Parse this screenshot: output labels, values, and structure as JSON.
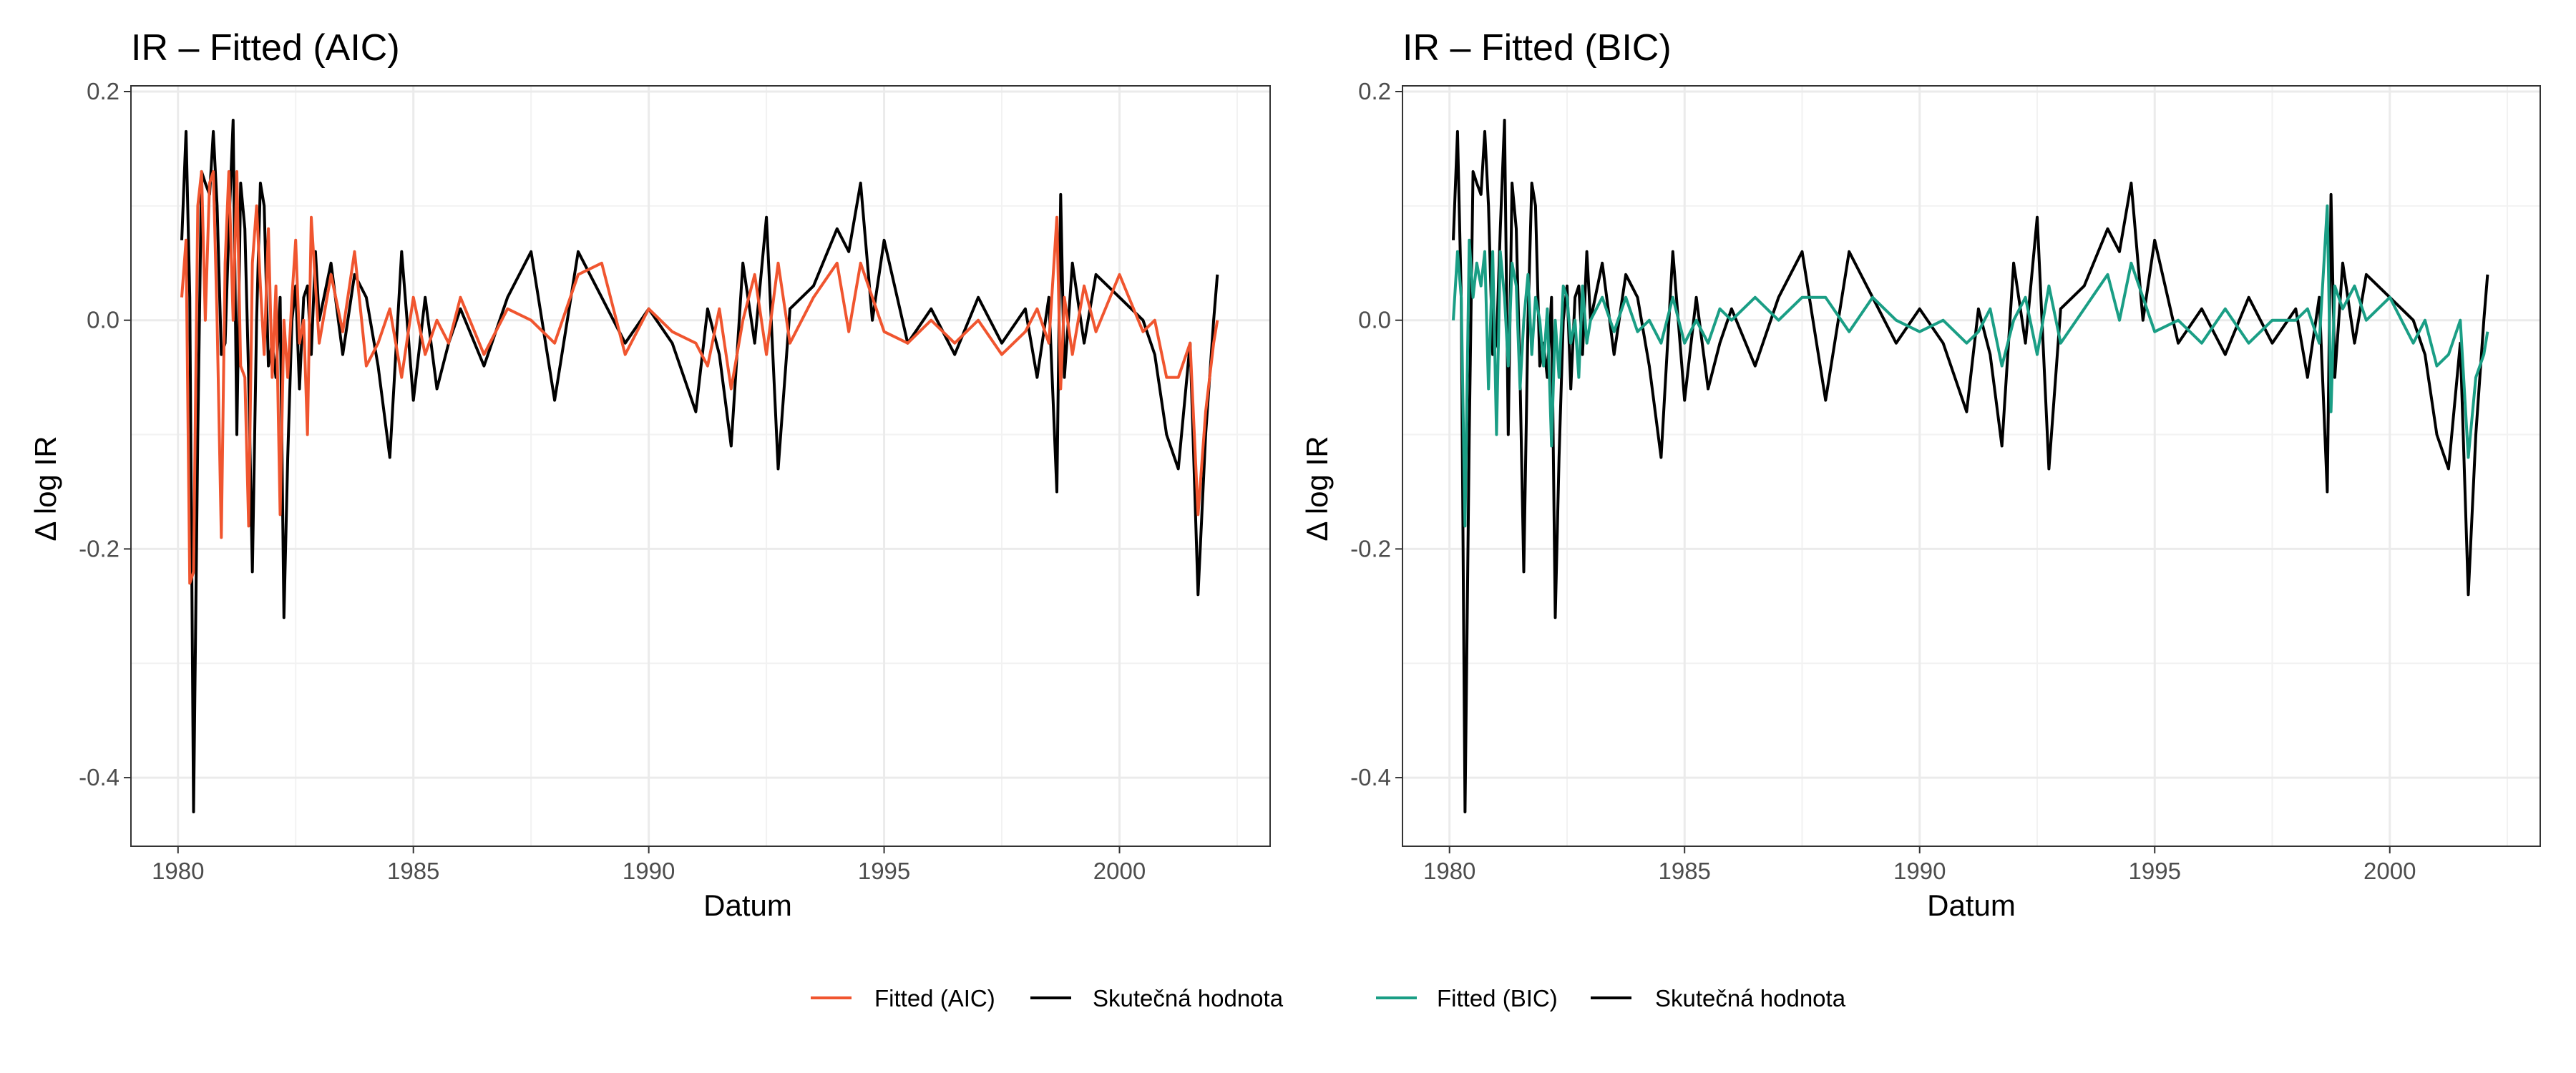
{
  "chart_data": [
    {
      "type": "line",
      "title": "IR – Fitted (AIC)",
      "xlabel": "Datum",
      "ylabel": "Δ log IR",
      "xlim": [
        1979.0,
        2003.2
      ],
      "ylim": [
        -0.46,
        0.205
      ],
      "x_ticks": [
        1980,
        1985,
        1990,
        1995,
        2000
      ],
      "x_tick_labels": [
        "1980",
        "1985",
        "1990",
        "1995",
        "2000"
      ],
      "y_ticks": [
        0.2,
        0.0,
        -0.2,
        -0.4
      ],
      "y_tick_labels": [
        "0.2",
        "0.0",
        "-0.2",
        "-0.4"
      ],
      "grid": true,
      "series": [
        {
          "name": "Skutečná hodnota",
          "color": "#000000",
          "x": [
            1980.08,
            1980.17,
            1980.25,
            1980.33,
            1980.42,
            1980.5,
            1980.58,
            1980.67,
            1980.75,
            1980.83,
            1980.92,
            1981.0,
            1981.08,
            1981.17,
            1981.25,
            1981.33,
            1981.42,
            1981.5,
            1981.58,
            1981.67,
            1981.75,
            1981.83,
            1981.92,
            1982.0,
            1982.08,
            1982.17,
            1982.25,
            1982.33,
            1982.42,
            1982.5,
            1982.58,
            1982.67,
            1982.75,
            1982.83,
            1982.92,
            1983.0,
            1983.25,
            1983.5,
            1983.75,
            1984.0,
            1984.25,
            1984.5,
            1984.75,
            1985.0,
            1985.25,
            1985.5,
            1985.75,
            1986.0,
            1986.5,
            1987.0,
            1987.5,
            1988.0,
            1988.5,
            1989.0,
            1989.5,
            1990.0,
            1990.5,
            1991.0,
            1991.25,
            1991.5,
            1991.75,
            1992.0,
            1992.25,
            1992.5,
            1992.75,
            1993.0,
            1993.5,
            1994.0,
            1994.25,
            1994.5,
            1994.75,
            1995.0,
            1995.5,
            1996.0,
            1996.5,
            1997.0,
            1997.5,
            1998.0,
            1998.25,
            1998.5,
            1998.67,
            1998.75,
            1998.83,
            1999.0,
            1999.25,
            1999.5,
            2000.0,
            2000.5,
            2000.75,
            2001.0,
            2001.25,
            2001.5,
            2001.67,
            2001.83,
            2002.0,
            2002.08
          ],
          "y": [
            0.07,
            0.165,
            0.02,
            -0.43,
            -0.1,
            0.13,
            0.12,
            0.11,
            0.165,
            0.1,
            -0.03,
            -0.02,
            0.08,
            0.175,
            -0.1,
            0.12,
            0.08,
            -0.05,
            -0.22,
            0.0,
            0.12,
            0.1,
            -0.04,
            -0.02,
            -0.05,
            0.02,
            -0.26,
            -0.12,
            0.0,
            0.03,
            -0.06,
            0.02,
            0.03,
            -0.03,
            0.06,
            0.0,
            0.05,
            -0.03,
            0.04,
            0.02,
            -0.04,
            -0.12,
            0.06,
            -0.07,
            0.02,
            -0.06,
            -0.02,
            0.01,
            -0.04,
            0.02,
            0.06,
            -0.07,
            0.06,
            0.02,
            -0.02,
            0.01,
            -0.02,
            -0.08,
            0.01,
            -0.03,
            -0.11,
            0.05,
            -0.02,
            0.09,
            -0.13,
            0.01,
            0.03,
            0.08,
            0.06,
            0.12,
            0.0,
            0.07,
            -0.02,
            0.01,
            -0.03,
            0.02,
            -0.02,
            0.01,
            -0.05,
            0.02,
            -0.15,
            0.11,
            -0.05,
            0.05,
            -0.02,
            0.04,
            0.02,
            0.0,
            -0.03,
            -0.1,
            -0.13,
            -0.02,
            -0.24,
            -0.1,
            0.0,
            0.04
          ]
        },
        {
          "name": "Fitted (AIC)",
          "color": "#f0552f",
          "x": [
            1980.08,
            1980.17,
            1980.25,
            1980.33,
            1980.42,
            1980.5,
            1980.58,
            1980.67,
            1980.75,
            1980.83,
            1980.92,
            1981.0,
            1981.08,
            1981.17,
            1981.25,
            1981.33,
            1981.42,
            1981.5,
            1981.58,
            1981.67,
            1981.75,
            1981.83,
            1981.92,
            1982.0,
            1982.08,
            1982.17,
            1982.25,
            1982.33,
            1982.42,
            1982.5,
            1982.58,
            1982.67,
            1982.75,
            1982.83,
            1982.92,
            1983.0,
            1983.25,
            1983.5,
            1983.75,
            1984.0,
            1984.25,
            1984.5,
            1984.75,
            1985.0,
            1985.25,
            1985.5,
            1985.75,
            1986.0,
            1986.5,
            1987.0,
            1987.5,
            1988.0,
            1988.5,
            1989.0,
            1989.5,
            1990.0,
            1990.5,
            1991.0,
            1991.25,
            1991.5,
            1991.75,
            1992.0,
            1992.25,
            1992.5,
            1992.75,
            1993.0,
            1993.5,
            1994.0,
            1994.25,
            1994.5,
            1994.75,
            1995.0,
            1995.5,
            1996.0,
            1996.5,
            1997.0,
            1997.5,
            1998.0,
            1998.25,
            1998.5,
            1998.67,
            1998.75,
            1998.83,
            1999.0,
            1999.25,
            1999.5,
            2000.0,
            2000.5,
            2000.75,
            2001.0,
            2001.25,
            2001.5,
            2001.67,
            2001.83,
            2002.0,
            2002.08
          ],
          "y": [
            0.02,
            0.07,
            -0.23,
            -0.22,
            0.1,
            0.13,
            0.0,
            0.12,
            0.13,
            0.0,
            -0.19,
            0.05,
            0.13,
            0.0,
            0.13,
            -0.04,
            -0.05,
            -0.18,
            0.05,
            0.1,
            0.03,
            -0.03,
            0.08,
            -0.05,
            0.03,
            -0.17,
            0.0,
            -0.05,
            0.02,
            0.07,
            -0.02,
            0.0,
            -0.1,
            0.09,
            0.03,
            -0.02,
            0.04,
            -0.01,
            0.06,
            -0.04,
            -0.02,
            0.01,
            -0.05,
            0.02,
            -0.03,
            0.0,
            -0.02,
            0.02,
            -0.03,
            0.01,
            0.0,
            -0.02,
            0.04,
            0.05,
            -0.03,
            0.01,
            -0.01,
            -0.02,
            -0.04,
            0.01,
            -0.06,
            0.0,
            0.04,
            -0.03,
            0.05,
            -0.02,
            0.02,
            0.05,
            -0.01,
            0.05,
            0.02,
            -0.01,
            -0.02,
            0.0,
            -0.02,
            0.0,
            -0.03,
            -0.01,
            0.01,
            -0.02,
            0.09,
            -0.06,
            0.02,
            -0.03,
            0.03,
            -0.01,
            0.04,
            -0.01,
            0.0,
            -0.05,
            -0.05,
            -0.02,
            -0.17,
            -0.08,
            -0.02,
            0.0
          ]
        }
      ],
      "legend": {
        "position": "bottom",
        "entries": [
          {
            "label": "Fitted (AIC)",
            "color": "#f0552f"
          },
          {
            "label": "Skutečná hodnota",
            "color": "#000000"
          }
        ]
      }
    },
    {
      "type": "line",
      "title": "IR – Fitted (BIC)",
      "xlabel": "Datum",
      "ylabel": "Δ log IR",
      "xlim": [
        1979.0,
        2003.2
      ],
      "ylim": [
        -0.46,
        0.205
      ],
      "x_ticks": [
        1980,
        1985,
        1990,
        1995,
        2000
      ],
      "x_tick_labels": [
        "1980",
        "1985",
        "1990",
        "1995",
        "2000"
      ],
      "y_ticks": [
        0.2,
        0.0,
        -0.2,
        -0.4
      ],
      "y_tick_labels": [
        "0.2",
        "0.0",
        "-0.2",
        "-0.4"
      ],
      "grid": true,
      "series": [
        {
          "name": "Skutečná hodnota",
          "color": "#000000",
          "x": [
            1980.08,
            1980.17,
            1980.25,
            1980.33,
            1980.42,
            1980.5,
            1980.58,
            1980.67,
            1980.75,
            1980.83,
            1980.92,
            1981.0,
            1981.08,
            1981.17,
            1981.25,
            1981.33,
            1981.42,
            1981.5,
            1981.58,
            1981.67,
            1981.75,
            1981.83,
            1981.92,
            1982.0,
            1982.08,
            1982.17,
            1982.25,
            1982.33,
            1982.42,
            1982.5,
            1982.58,
            1982.67,
            1982.75,
            1982.83,
            1982.92,
            1983.0,
            1983.25,
            1983.5,
            1983.75,
            1984.0,
            1984.25,
            1984.5,
            1984.75,
            1985.0,
            1985.25,
            1985.5,
            1985.75,
            1986.0,
            1986.5,
            1987.0,
            1987.5,
            1988.0,
            1988.5,
            1989.0,
            1989.5,
            1990.0,
            1990.5,
            1991.0,
            1991.25,
            1991.5,
            1991.75,
            1992.0,
            1992.25,
            1992.5,
            1992.75,
            1993.0,
            1993.5,
            1994.0,
            1994.25,
            1994.5,
            1994.75,
            1995.0,
            1995.5,
            1996.0,
            1996.5,
            1997.0,
            1997.5,
            1998.0,
            1998.25,
            1998.5,
            1998.67,
            1998.75,
            1998.83,
            1999.0,
            1999.25,
            1999.5,
            2000.0,
            2000.5,
            2000.75,
            2001.0,
            2001.25,
            2001.5,
            2001.67,
            2001.83,
            2002.0,
            2002.08
          ],
          "y": [
            0.07,
            0.165,
            0.02,
            -0.43,
            -0.1,
            0.13,
            0.12,
            0.11,
            0.165,
            0.1,
            -0.03,
            -0.02,
            0.08,
            0.175,
            -0.1,
            0.12,
            0.08,
            -0.05,
            -0.22,
            0.0,
            0.12,
            0.1,
            -0.04,
            -0.02,
            -0.05,
            0.02,
            -0.26,
            -0.12,
            0.0,
            0.03,
            -0.06,
            0.02,
            0.03,
            -0.03,
            0.06,
            0.0,
            0.05,
            -0.03,
            0.04,
            0.02,
            -0.04,
            -0.12,
            0.06,
            -0.07,
            0.02,
            -0.06,
            -0.02,
            0.01,
            -0.04,
            0.02,
            0.06,
            -0.07,
            0.06,
            0.02,
            -0.02,
            0.01,
            -0.02,
            -0.08,
            0.01,
            -0.03,
            -0.11,
            0.05,
            -0.02,
            0.09,
            -0.13,
            0.01,
            0.03,
            0.08,
            0.06,
            0.12,
            0.0,
            0.07,
            -0.02,
            0.01,
            -0.03,
            0.02,
            -0.02,
            0.01,
            -0.05,
            0.02,
            -0.15,
            0.11,
            -0.05,
            0.05,
            -0.02,
            0.04,
            0.02,
            0.0,
            -0.03,
            -0.1,
            -0.13,
            -0.02,
            -0.24,
            -0.1,
            0.0,
            0.04
          ]
        },
        {
          "name": "Fitted (BIC)",
          "color": "#1a9e85",
          "x": [
            1980.08,
            1980.17,
            1980.25,
            1980.33,
            1980.42,
            1980.5,
            1980.58,
            1980.67,
            1980.75,
            1980.83,
            1980.92,
            1981.0,
            1981.08,
            1981.17,
            1981.25,
            1981.33,
            1981.42,
            1981.5,
            1981.58,
            1981.67,
            1981.75,
            1981.83,
            1981.92,
            1982.0,
            1982.08,
            1982.17,
            1982.25,
            1982.33,
            1982.42,
            1982.5,
            1982.58,
            1982.67,
            1982.75,
            1982.83,
            1982.92,
            1983.0,
            1983.25,
            1983.5,
            1983.75,
            1984.0,
            1984.25,
            1984.5,
            1984.75,
            1985.0,
            1985.25,
            1985.5,
            1985.75,
            1986.0,
            1986.5,
            1987.0,
            1987.5,
            1988.0,
            1988.5,
            1989.0,
            1989.5,
            1990.0,
            1990.5,
            1991.0,
            1991.25,
            1991.5,
            1991.75,
            1992.0,
            1992.25,
            1992.5,
            1992.75,
            1993.0,
            1993.5,
            1994.0,
            1994.25,
            1994.5,
            1994.75,
            1995.0,
            1995.5,
            1996.0,
            1996.5,
            1997.0,
            1997.5,
            1998.0,
            1998.25,
            1998.5,
            1998.67,
            1998.75,
            1998.83,
            1999.0,
            1999.25,
            1999.5,
            2000.0,
            2000.5,
            2000.75,
            2001.0,
            2001.25,
            2001.5,
            2001.67,
            2001.83,
            2002.0,
            2002.08
          ],
          "y": [
            0.0,
            0.06,
            0.02,
            -0.18,
            0.07,
            0.02,
            0.05,
            0.03,
            0.06,
            -0.06,
            0.06,
            -0.1,
            0.06,
            0.02,
            -0.04,
            0.05,
            0.03,
            -0.06,
            0.0,
            0.04,
            -0.03,
            0.02,
            0.0,
            -0.04,
            0.01,
            -0.11,
            0.0,
            -0.05,
            0.03,
            0.02,
            -0.02,
            0.0,
            -0.05,
            0.03,
            -0.02,
            0.0,
            0.02,
            -0.01,
            0.02,
            -0.01,
            0.0,
            -0.02,
            0.02,
            -0.02,
            0.0,
            -0.02,
            0.01,
            0.0,
            0.02,
            0.0,
            0.02,
            0.02,
            -0.01,
            0.02,
            0.0,
            -0.01,
            0.0,
            -0.02,
            -0.01,
            0.01,
            -0.04,
            0.0,
            0.02,
            -0.03,
            0.03,
            -0.02,
            0.01,
            0.04,
            0.0,
            0.05,
            0.02,
            -0.01,
            0.0,
            -0.02,
            0.01,
            -0.02,
            0.0,
            0.0,
            0.01,
            -0.02,
            0.1,
            -0.08,
            0.03,
            0.01,
            0.03,
            0.0,
            0.02,
            -0.02,
            0.0,
            -0.04,
            -0.03,
            0.0,
            -0.12,
            -0.05,
            -0.03,
            -0.01
          ]
        }
      ],
      "legend": {
        "position": "bottom",
        "entries": [
          {
            "label": "Fitted (BIC)",
            "color": "#1a9e85"
          },
          {
            "label": "Skutečná hodnota",
            "color": "#000000"
          }
        ]
      }
    }
  ]
}
